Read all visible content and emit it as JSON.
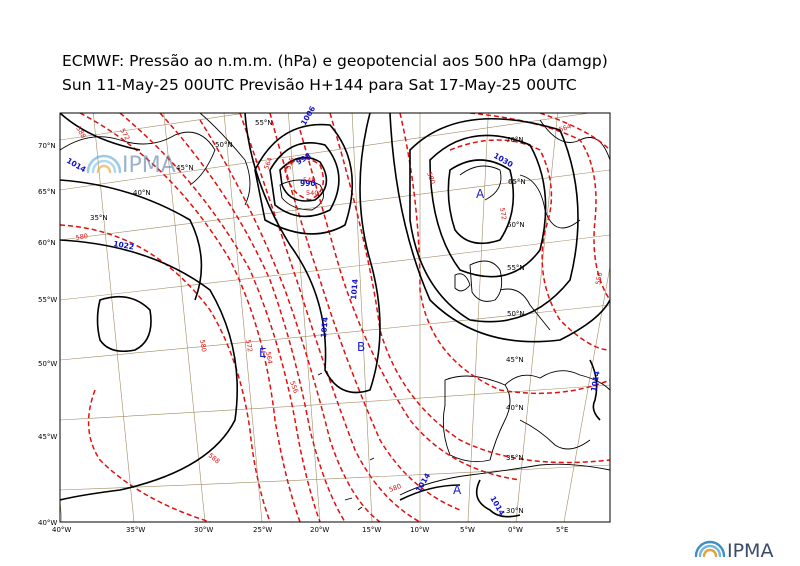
{
  "header": {
    "title_line1": "ECMWF:  Pressão ao n.m.m. (hPa) e geopotencial aos 500 hPa (damgp)",
    "title_line2": "Sun 11-May-25 00UTC Previsão H+144 para Sat 17-May-25 00UTC"
  },
  "logo": {
    "text": "IPMA",
    "icon": "ipma-arc-icon"
  },
  "axes": {
    "left_lat": [
      "70°N",
      "65°N",
      "60°N",
      "55°W",
      "50°W",
      "45°W",
      "40°W"
    ],
    "bottom_lon": [
      "40°W",
      "35°W",
      "30°W",
      "25°W",
      "20°W",
      "15°W",
      "10°W",
      "5°W",
      "0°W",
      "5°E"
    ]
  },
  "grid_labels": [
    "55°N",
    "50°N",
    "45°N",
    "40°N",
    "35°N",
    "70°N",
    "65°N",
    "60°N",
    "55°N",
    "50°N",
    "45°N",
    "40°N",
    "35°N",
    "30°N"
  ],
  "isobar_labels": [
    "1014",
    "1022",
    "1006",
    "998",
    "990",
    "1014",
    "1030",
    "1014",
    "1014",
    "1014",
    "1014"
  ],
  "geopotential_labels": [
    "580",
    "588",
    "572",
    "564",
    "556",
    "548",
    "540",
    "580",
    "572",
    "564",
    "556",
    "580",
    "588",
    "580",
    "556",
    "564",
    "572"
  ],
  "pressure_centres": {
    "high": "A",
    "low": "B",
    "low2": "E",
    "high2": "A"
  },
  "colors": {
    "isobar": "#000000",
    "geopotential": "#e01010",
    "iso_label": "#1010d0",
    "grid": "#a08c64"
  }
}
